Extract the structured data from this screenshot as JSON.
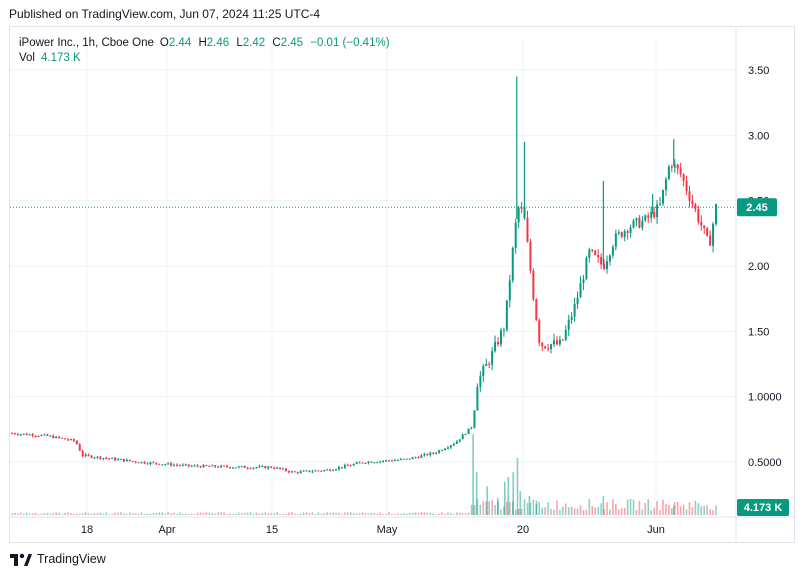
{
  "header": {
    "published": "Published on TradingView.com, Jun 07, 2024 11:25 UTC-4"
  },
  "legend": {
    "symbol": "iPower Inc., 1h, Cboe One",
    "o_key": "O",
    "o_val": "2.44",
    "h_key": "H",
    "h_val": "2.46",
    "l_key": "L",
    "l_val": "2.42",
    "c_key": "C",
    "c_val": "2.45",
    "change": "−0.01 (−0.41%)",
    "vol_key": "Vol",
    "vol_val": "4.173 K"
  },
  "price_tag": "2.45",
  "volume_tag": "4.173 K",
  "footer": {
    "brand": "TradingView"
  },
  "colors": {
    "up": "#089981",
    "down": "#f23645",
    "tag": "#089981",
    "grid": "#f0f3fa"
  },
  "chart_data": {
    "type": "candlestick",
    "y_ticks": [
      "3.50",
      "3.00",
      "2.50",
      "2.00",
      "1.50",
      "1.0000",
      "0.5000"
    ],
    "x_ticks": [
      "18",
      "Apr",
      "15",
      "May",
      "20",
      "Jun"
    ],
    "ylim": [
      0.0,
      3.5
    ],
    "last_price": 2.45,
    "last_volume": "4.173 K",
    "price_path": [
      [
        0.0,
        0.72
      ],
      [
        0.05,
        0.7
      ],
      [
        0.09,
        0.66
      ],
      [
        0.1,
        0.55
      ],
      [
        0.18,
        0.5
      ],
      [
        0.25,
        0.47
      ],
      [
        0.33,
        0.46
      ],
      [
        0.37,
        0.46
      ],
      [
        0.4,
        0.42
      ],
      [
        0.45,
        0.44
      ],
      [
        0.5,
        0.5
      ],
      [
        0.56,
        0.52
      ],
      [
        0.6,
        0.57
      ],
      [
        0.63,
        0.65
      ],
      [
        0.655,
        0.78
      ],
      [
        0.66,
        1.1
      ],
      [
        0.68,
        1.3
      ],
      [
        0.7,
        1.55
      ],
      [
        0.715,
        2.3
      ],
      [
        0.72,
        2.45
      ],
      [
        0.727,
        2.4
      ],
      [
        0.74,
        1.8
      ],
      [
        0.75,
        1.4
      ],
      [
        0.78,
        1.4
      ],
      [
        0.8,
        1.7
      ],
      [
        0.82,
        2.1
      ],
      [
        0.84,
        2.0
      ],
      [
        0.855,
        2.2
      ],
      [
        0.875,
        2.3
      ],
      [
        0.9,
        2.35
      ],
      [
        0.92,
        2.45
      ],
      [
        0.935,
        2.8
      ],
      [
        0.95,
        2.7
      ],
      [
        0.965,
        2.5
      ],
      [
        0.98,
        2.3
      ],
      [
        0.99,
        2.15
      ],
      [
        1.0,
        2.45
      ]
    ],
    "spikes": [
      [
        0.717,
        3.45
      ],
      [
        0.728,
        2.95
      ],
      [
        0.84,
        2.65
      ],
      [
        0.91,
        2.55
      ],
      [
        0.94,
        2.97
      ]
    ],
    "volume_bars": [
      [
        0.655,
        0.85
      ],
      [
        0.66,
        0.45
      ],
      [
        0.675,
        0.3
      ],
      [
        0.69,
        0.18
      ],
      [
        0.7,
        0.35
      ],
      [
        0.705,
        0.4
      ],
      [
        0.712,
        0.45
      ],
      [
        0.718,
        0.6
      ],
      [
        0.722,
        0.25
      ],
      [
        0.735,
        0.2
      ],
      [
        0.745,
        0.15
      ],
      [
        0.84,
        0.2
      ],
      [
        0.94,
        0.1
      ]
    ]
  }
}
